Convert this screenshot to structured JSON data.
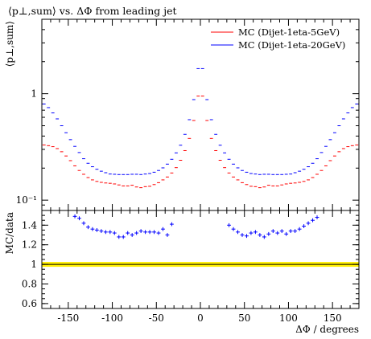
{
  "chart_data": [
    {
      "type": "scatter",
      "title": "⟨p⊥,sum⟩ vs. ΔΦ from leading jet",
      "ylabel": "⟨p⊥,sum⟩",
      "xlabel": "",
      "xlim": [
        -180,
        180
      ],
      "ylim": [
        0.08,
        5
      ],
      "yscale": "log",
      "yticks": [
        "10⁻¹",
        "1"
      ],
      "legend_position": "top-right",
      "x": [
        -177.5,
        -172.5,
        -167.5,
        -162.5,
        -157.5,
        -152.5,
        -147.5,
        -142.5,
        -137.5,
        -132.5,
        -127.5,
        -122.5,
        -117.5,
        -112.5,
        -107.5,
        -102.5,
        -97.5,
        -92.5,
        -87.5,
        -82.5,
        -77.5,
        -72.5,
        -67.5,
        -62.5,
        -57.5,
        -52.5,
        -47.5,
        -42.5,
        -37.5,
        -32.5,
        -27.5,
        -22.5,
        -17.5,
        -12.5,
        -7.5,
        -2.5,
        2.5,
        7.5,
        12.5,
        17.5,
        22.5,
        27.5,
        32.5,
        37.5,
        42.5,
        47.5,
        52.5,
        57.5,
        62.5,
        67.5,
        72.5,
        77.5,
        82.5,
        87.5,
        92.5,
        97.5,
        102.5,
        107.5,
        112.5,
        117.5,
        122.5,
        127.5,
        132.5,
        137.5,
        142.5,
        147.5,
        152.5,
        157.5,
        162.5,
        167.5,
        172.5,
        177.5
      ],
      "series": [
        {
          "name": "MC (Dijet-1eta-5GeV)",
          "color": "#ff0000",
          "values": [
            0.33,
            0.325,
            0.318,
            0.305,
            0.285,
            0.26,
            0.235,
            0.21,
            0.19,
            0.175,
            0.163,
            0.155,
            0.15,
            0.147,
            0.145,
            0.144,
            0.142,
            0.139,
            0.136,
            0.136,
            0.138,
            0.133,
            0.131,
            0.134,
            0.135,
            0.14,
            0.146,
            0.155,
            0.165,
            0.18,
            0.202,
            0.237,
            0.292,
            0.38,
            0.56,
            0.95,
            0.95,
            0.56,
            0.38,
            0.292,
            0.237,
            0.202,
            0.18,
            0.165,
            0.155,
            0.146,
            0.14,
            0.135,
            0.134,
            0.131,
            0.133,
            0.138,
            0.136,
            0.136,
            0.139,
            0.142,
            0.144,
            0.145,
            0.147,
            0.15,
            0.155,
            0.163,
            0.175,
            0.19,
            0.21,
            0.235,
            0.26,
            0.285,
            0.305,
            0.318,
            0.325,
            0.33
          ]
        },
        {
          "name": "MC (Dijet-1eta-20GeV)",
          "color": "#0000ff",
          "values": [
            0.8,
            0.74,
            0.66,
            0.58,
            0.5,
            0.43,
            0.37,
            0.32,
            0.28,
            0.245,
            0.222,
            0.206,
            0.195,
            0.187,
            0.181,
            0.176,
            0.175,
            0.174,
            0.174,
            0.174,
            0.175,
            0.175,
            0.174,
            0.176,
            0.178,
            0.183,
            0.19,
            0.201,
            0.218,
            0.242,
            0.278,
            0.328,
            0.415,
            0.57,
            0.88,
            1.72,
            1.72,
            0.88,
            0.57,
            0.415,
            0.328,
            0.278,
            0.242,
            0.218,
            0.201,
            0.19,
            0.183,
            0.178,
            0.176,
            0.174,
            0.175,
            0.175,
            0.174,
            0.174,
            0.174,
            0.175,
            0.176,
            0.181,
            0.187,
            0.195,
            0.206,
            0.222,
            0.245,
            0.28,
            0.32,
            0.37,
            0.43,
            0.5,
            0.58,
            0.66,
            0.74,
            0.8
          ]
        }
      ]
    },
    {
      "type": "scatter",
      "ylabel": "MC/data",
      "xlabel": "ΔΦ / degrees",
      "xlim": [
        -180,
        180
      ],
      "ylim": [
        0.55,
        1.55
      ],
      "yticks": [
        "0.6",
        "0.8",
        "1",
        "1.2",
        "1.4"
      ],
      "xticks": [
        "-150",
        "-100",
        "-50",
        "0",
        "50",
        "100",
        "150"
      ],
      "reference_value": 1.0,
      "reference_band_color": "#ffee00",
      "series": [
        {
          "name": "",
          "color": "#0000ff",
          "x": [
            -142.5,
            -137.5,
            -132.5,
            -127.5,
            -122.5,
            -117.5,
            -112.5,
            -107.5,
            -102.5,
            -97.5,
            -92.5,
            -87.5,
            -82.5,
            -77.5,
            -72.5,
            -67.5,
            -62.5,
            -57.5,
            -52.5,
            -47.5,
            -42.5,
            -37.5,
            -32.5,
            32.5,
            37.5,
            42.5,
            47.5,
            52.5,
            57.5,
            62.5,
            67.5,
            72.5,
            77.5,
            82.5,
            87.5,
            92.5,
            97.5,
            102.5,
            107.5,
            112.5,
            117.5,
            122.5,
            127.5,
            132.5
          ],
          "values": [
            1.49,
            1.47,
            1.42,
            1.38,
            1.36,
            1.35,
            1.34,
            1.33,
            1.33,
            1.32,
            1.28,
            1.28,
            1.32,
            1.3,
            1.32,
            1.34,
            1.33,
            1.33,
            1.33,
            1.32,
            1.36,
            1.3,
            1.41,
            1.4,
            1.36,
            1.33,
            1.3,
            1.29,
            1.32,
            1.33,
            1.3,
            1.28,
            1.31,
            1.34,
            1.32,
            1.34,
            1.31,
            1.34,
            1.34,
            1.36,
            1.39,
            1.42,
            1.45,
            1.48
          ]
        }
      ]
    }
  ]
}
